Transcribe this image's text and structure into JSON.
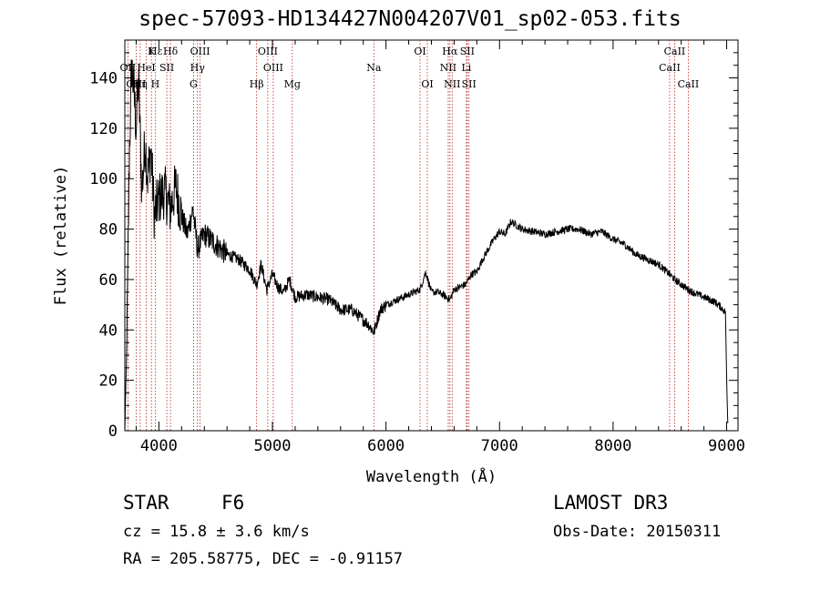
{
  "chart_data": {
    "type": "line",
    "title": "spec-57093-HD134427N004207V01_sp02-053.fits",
    "xlabel": "Wavelength (Å)",
    "ylabel": "Flux (relative)",
    "xlim": [
      3700,
      9100
    ],
    "ylim": [
      0,
      155
    ],
    "xticks": [
      4000,
      5000,
      6000,
      7000,
      8000,
      9000
    ],
    "yticks": [
      0,
      20,
      40,
      60,
      80,
      100,
      120,
      140
    ],
    "series": [
      {
        "name": "flux",
        "x": [
          3700,
          3720,
          3740,
          3760,
          3780,
          3800,
          3820,
          3850,
          3880,
          3900,
          3930,
          3960,
          4000,
          4050,
          4100,
          4150,
          4200,
          4250,
          4300,
          4340,
          4400,
          4450,
          4500,
          4600,
          4700,
          4800,
          4861,
          4900,
          4950,
          5000,
          5050,
          5100,
          5150,
          5200,
          5300,
          5400,
          5500,
          5600,
          5700,
          5800,
          5850,
          5893,
          5950,
          6000,
          6050,
          6100,
          6200,
          6300,
          6350,
          6400,
          6450,
          6500,
          6563,
          6600,
          6650,
          6700,
          6750,
          6800,
          6850,
          6900,
          6950,
          7000,
          7050,
          7100,
          7200,
          7300,
          7400,
          7500,
          7600,
          7700,
          7800,
          7900,
          8000,
          8100,
          8200,
          8300,
          8400,
          8500,
          8542,
          8600,
          8662,
          8700,
          8800,
          8900,
          8950,
          8990,
          9000,
          9010
        ],
        "y": [
          0,
          40,
          110,
          145,
          135,
          120,
          140,
          95,
          115,
          100,
          112,
          85,
          92,
          95,
          88,
          97,
          85,
          78,
          88,
          72,
          78,
          76,
          74,
          70,
          68,
          64,
          58,
          66,
          56,
          62,
          57,
          55,
          60,
          53,
          54,
          53,
          52,
          48,
          48,
          44,
          42,
          39,
          48,
          50,
          51,
          52,
          54,
          56,
          63,
          55,
          55,
          54,
          52,
          56,
          57,
          58,
          62,
          63,
          68,
          72,
          76,
          79,
          78,
          83,
          80,
          79,
          78,
          79,
          80,
          80,
          78,
          79,
          76,
          74,
          70,
          68,
          66,
          62,
          60,
          58,
          56,
          55,
          53,
          51,
          49,
          47,
          20,
          3
        ]
      }
    ],
    "line_markers": [
      {
        "label": "Hε",
        "wl": 3970,
        "row": 0
      },
      {
        "label": "K",
        "wl": 3934,
        "row": 0
      },
      {
        "label": "Hδ",
        "wl": 4102,
        "row": 0
      },
      {
        "label": "OIII",
        "wl": 4363,
        "row": 0
      },
      {
        "label": "OIII",
        "wl": 4959,
        "row": 0
      },
      {
        "label": "OI",
        "wl": 6300,
        "row": 0
      },
      {
        "label": "Hα",
        "wl": 6563,
        "row": 0
      },
      {
        "label": "SII",
        "wl": 6716,
        "row": 0
      },
      {
        "label": "CaII",
        "wl": 8542,
        "row": 0
      },
      {
        "label": "OII",
        "wl": 3727,
        "row": 1
      },
      {
        "label": "HeI",
        "wl": 3889,
        "row": 1
      },
      {
        "label": "SII",
        "wl": 4070,
        "row": 1
      },
      {
        "label": "Hγ",
        "wl": 4340,
        "row": 1
      },
      {
        "label": "OIII",
        "wl": 5007,
        "row": 1
      },
      {
        "label": "Na",
        "wl": 5893,
        "row": 1
      },
      {
        "label": "NII",
        "wl": 6548,
        "row": 1
      },
      {
        "label": "Li",
        "wl": 6708,
        "row": 1
      },
      {
        "label": "CaII",
        "wl": 8498,
        "row": 1
      },
      {
        "label": "OIII",
        "wl": 3800,
        "row": 2
      },
      {
        "label": "Hη",
        "wl": 3835,
        "row": 2
      },
      {
        "label": "H",
        "wl": 3968,
        "row": 2
      },
      {
        "label": "G",
        "wl": 4305,
        "row": 2
      },
      {
        "label": "Hβ",
        "wl": 4861,
        "row": 2
      },
      {
        "label": "Mg",
        "wl": 5175,
        "row": 2
      },
      {
        "label": "OI",
        "wl": 6364,
        "row": 2
      },
      {
        "label": "NII",
        "wl": 6583,
        "row": 2
      },
      {
        "label": "SII",
        "wl": 6731,
        "row": 2
      },
      {
        "label": "CaII",
        "wl": 8662,
        "row": 2
      }
    ],
    "marker_lines_wl": [
      3727,
      3800,
      3835,
      3889,
      3934,
      3970,
      4070,
      4102,
      4305,
      4340,
      4363,
      4861,
      4959,
      5007,
      5175,
      5893,
      6300,
      6364,
      6548,
      6563,
      6583,
      6708,
      6716,
      6731,
      8498,
      8542,
      8662
    ]
  },
  "footer": {
    "class_label": "STAR",
    "subclass": "F6",
    "survey": "LAMOST DR3",
    "cz": "cz = 15.8 ± 3.6 km/s",
    "obs_date": "Obs-Date: 20150311",
    "coords": "RA = 205.58775, DEC =  -0.91157"
  },
  "colors": {
    "marker_line": "#b22222",
    "spectrum": "#000000"
  }
}
